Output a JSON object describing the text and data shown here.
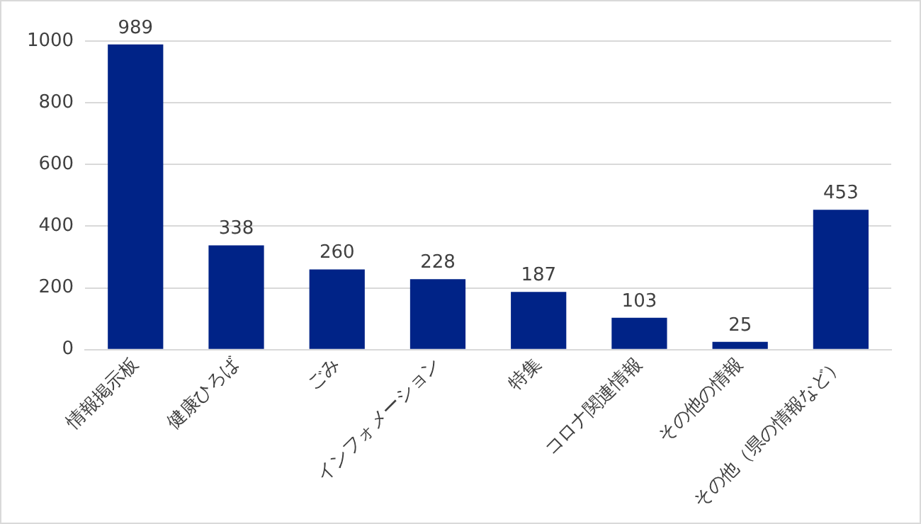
{
  "chart_data": {
    "type": "bar",
    "categories": [
      "情報掲示板",
      "健康ひろば",
      "ごみ",
      "インフォメーション",
      "特集",
      "コロナ関連情報",
      "その他の情報",
      "その他（県の情報など）"
    ],
    "values": [
      989,
      338,
      260,
      228,
      187,
      103,
      25,
      453
    ],
    "color": "#002387",
    "ylim": [
      0,
      1000
    ],
    "yticks": [
      0,
      200,
      400,
      600,
      800,
      1000
    ],
    "grid": "y",
    "data_labels": true,
    "legend": false
  }
}
